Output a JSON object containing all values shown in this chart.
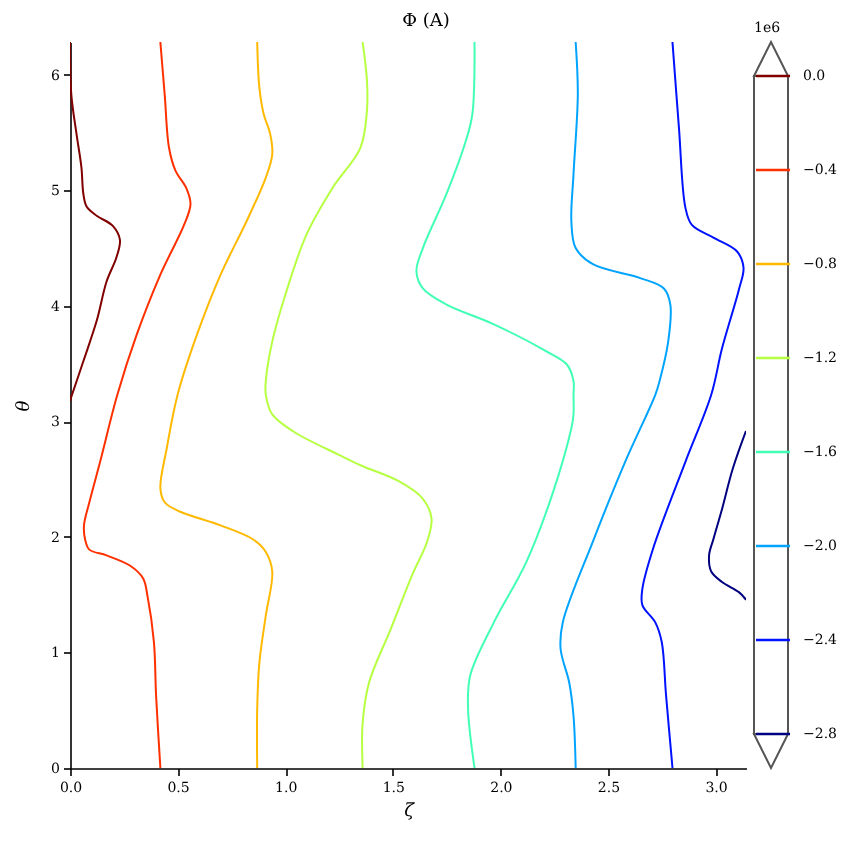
{
  "chart_data": {
    "type": "line",
    "title": "Φ (A)",
    "xlabel": "ζ",
    "ylabel": "θ",
    "legend": "right",
    "legend_title": "1e6",
    "xlim": [
      0,
      3.1416
    ],
    "ylim": [
      0,
      6.2832
    ],
    "xticks": [
      {
        "value": 0,
        "label": "0.0"
      },
      0.5,
      {
        "value": 1,
        "label": "1.0"
      },
      1.5,
      {
        "value": 2,
        "label": "2.0"
      },
      2.5,
      {
        "value": 3,
        "label": "3.0"
      }
    ],
    "yticks": [
      0,
      1,
      2,
      3,
      4,
      5,
      6
    ],
    "series": [
      {
        "name": "0.0",
        "color": "#800000",
        "x": [
          0,
          0.006,
          0.03,
          0.053,
          0.062,
          0.077,
          0.124,
          0.2,
          0.232,
          0.216,
          0.17,
          0.124,
          0.062,
          0
        ],
        "values": [
          6.28,
          5.83,
          5.49,
          5.2,
          4.97,
          4.86,
          4.78,
          4.69,
          4.57,
          4.42,
          4.21,
          3.87,
          3.52,
          3.18
        ]
      },
      {
        "name": "−0.4",
        "color": "#ff3000",
        "x": [
          0.42,
          0.44,
          0.46,
          0.49,
          0.54,
          0.56,
          0.53,
          0.42,
          0.31,
          0.22,
          0.14,
          0.09,
          0.065,
          0.07,
          0.09,
          0.17,
          0.28,
          0.34,
          0.36,
          0.39,
          0.4,
          0.42
        ],
        "values": [
          6.28,
          5.83,
          5.37,
          5.17,
          5.02,
          4.88,
          4.7,
          4.27,
          3.75,
          3.23,
          2.65,
          2.3,
          2.1,
          1.98,
          1.89,
          1.84,
          1.75,
          1.64,
          1.49,
          1.09,
          0.63,
          0
        ]
      },
      {
        "name": "−0.8",
        "color": "#ffb900",
        "x": [
          0.87,
          0.88,
          0.9,
          0.93,
          0.94,
          0.91,
          0.82,
          0.7,
          0.59,
          0.5,
          0.45,
          0.42,
          0.44,
          0.51,
          0.7,
          0.85,
          0.91,
          0.94,
          0.91,
          0.88,
          0.87,
          0.87
        ],
        "values": [
          6.28,
          5.89,
          5.66,
          5.49,
          5.31,
          5.11,
          4.73,
          4.27,
          3.75,
          3.23,
          2.77,
          2.42,
          2.3,
          2.22,
          2.1,
          1.98,
          1.87,
          1.7,
          1.32,
          0.91,
          0.51,
          0
        ]
      },
      {
        "name": "−1.2",
        "color": "#b6ff41",
        "x": [
          1.36,
          1.38,
          1.38,
          1.35,
          1.22,
          1.1,
          1.01,
          0.94,
          0.91,
          0.91,
          0.94,
          1.04,
          1.25,
          1.35,
          1.53,
          1.64,
          1.68,
          1.66,
          1.59,
          1.49,
          1.39,
          1.36,
          1.36
        ],
        "values": [
          6.28,
          5.95,
          5.69,
          5.37,
          5.02,
          4.62,
          4.15,
          3.69,
          3.35,
          3.23,
          3.06,
          2.91,
          2.71,
          2.62,
          2.48,
          2.33,
          2.16,
          1.96,
          1.67,
          1.2,
          0.74,
          0.39,
          0
        ]
      },
      {
        "name": "−1.6",
        "color": "#41ffb5",
        "x": [
          1.88,
          1.87,
          1.84,
          1.75,
          1.64,
          1.61,
          1.64,
          1.75,
          1.97,
          2.21,
          2.31,
          2.34,
          2.34,
          2.34,
          2.33,
          2.24,
          2.12,
          1.97,
          1.86,
          1.85,
          1.88
        ],
        "values": [
          6.28,
          5.66,
          5.43,
          4.97,
          4.5,
          4.3,
          4.15,
          4.01,
          3.84,
          3.61,
          3.49,
          3.35,
          3.23,
          3.06,
          2.94,
          2.36,
          1.78,
          1.26,
          0.8,
          0.51,
          0
        ]
      },
      {
        "name": "−2.0",
        "color": "#00a4ff",
        "x": [
          2.35,
          2.36,
          2.34,
          2.33,
          2.35,
          2.43,
          2.65,
          2.76,
          2.79,
          2.78,
          2.74,
          2.72,
          2.58,
          2.43,
          2.29,
          2.28,
          2.32,
          2.34,
          2.35
        ],
        "values": [
          6.28,
          5.83,
          5.14,
          4.73,
          4.5,
          4.36,
          4.24,
          4.15,
          4.01,
          3.69,
          3.35,
          3.23,
          2.65,
          1.96,
          1.26,
          1.03,
          0.74,
          0.45,
          0
        ]
      },
      {
        "name": "−2.4",
        "color": "#0012ff",
        "x": [
          2.8,
          2.83,
          2.86,
          2.89,
          2.99,
          3.1,
          3.13,
          3.11,
          3.03,
          2.98,
          2.86,
          2.71,
          2.66,
          2.66,
          2.72,
          2.75,
          2.77,
          2.8
        ],
        "values": [
          6.28,
          5.54,
          4.85,
          4.7,
          4.59,
          4.47,
          4.33,
          4.15,
          3.63,
          3.23,
          2.65,
          1.9,
          1.55,
          1.41,
          1.26,
          1.09,
          0.63,
          0
        ]
      },
      {
        "name": "−2.8",
        "color": "#000080",
        "x": [
          3.14,
          3.08,
          3.03,
          2.99,
          2.97,
          2.98,
          3.03,
          3.11,
          3.14
        ],
        "values": [
          2.91,
          2.59,
          2.24,
          1.98,
          1.84,
          1.7,
          1.61,
          1.52,
          1.46
        ]
      }
    ]
  }
}
